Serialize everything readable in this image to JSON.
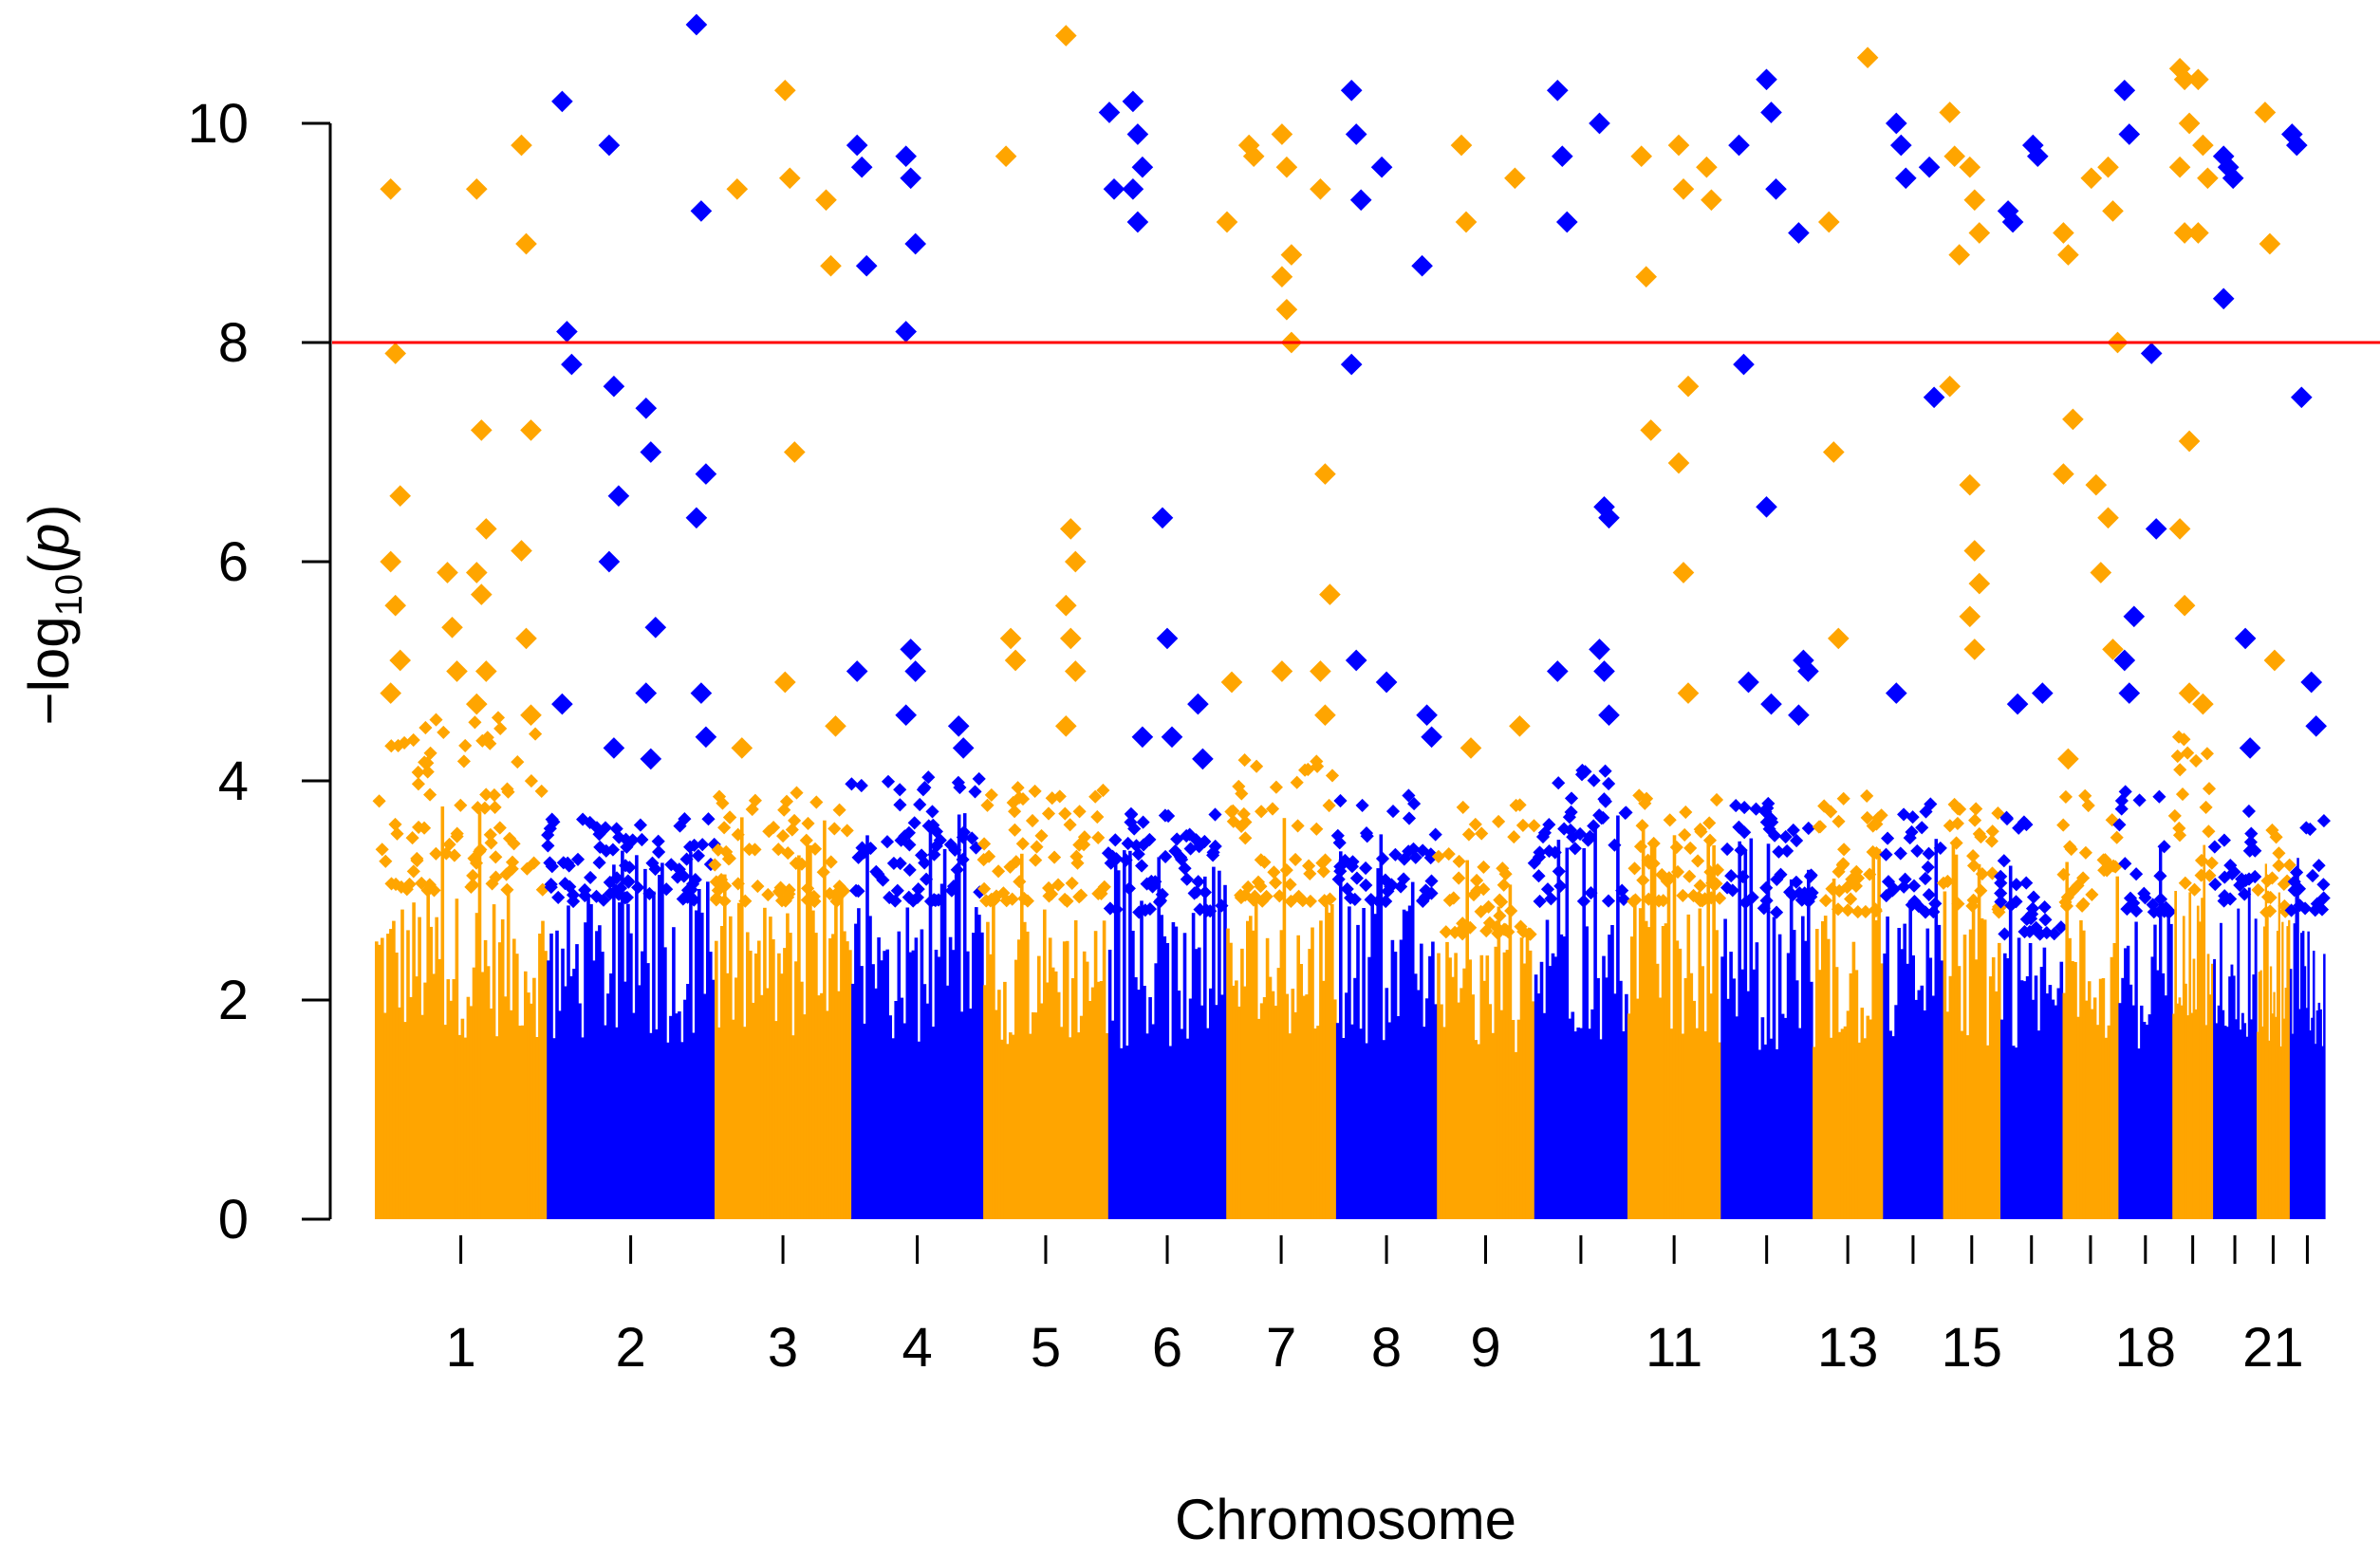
{
  "chart_data": {
    "type": "scatter",
    "subtype": "manhattan",
    "title": "",
    "xlabel": "Chromosome",
    "ylabel_prefix": "−log",
    "ylabel_subscript": "10",
    "ylabel_open": "(",
    "ylabel_var": "p",
    "ylabel_close": ")",
    "ylim": [
      0,
      11
    ],
    "yticks": [
      0,
      2,
      4,
      6,
      8,
      10
    ],
    "threshold": 8,
    "threshold_color": "#ff0000",
    "colors": [
      "#ffa500",
      "#0000ff"
    ],
    "grid": false,
    "legend": "none",
    "chromosomes": [
      {
        "chr": 1,
        "size": 249,
        "label": "1",
        "cap": 4.3,
        "ymax_bulk": 3.0
      },
      {
        "chr": 2,
        "size": 243,
        "label": "2",
        "cap": 3.4,
        "ymax_bulk": 2.9
      },
      {
        "chr": 3,
        "size": 198,
        "label": "3",
        "cap": 3.7,
        "ymax_bulk": 2.9
      },
      {
        "chr": 4,
        "size": 191,
        "label": "4",
        "cap": 3.8,
        "ymax_bulk": 2.9
      },
      {
        "chr": 5,
        "size": 181,
        "label": "5",
        "cap": 3.7,
        "ymax_bulk": 2.9
      },
      {
        "chr": 6,
        "size": 171,
        "label": "6",
        "cap": 3.4,
        "ymax_bulk": 2.8
      },
      {
        "chr": 7,
        "size": 159,
        "label": "7",
        "cap": 3.9,
        "ymax_bulk": 2.9
      },
      {
        "chr": 8,
        "size": 146,
        "label": "8",
        "cap": 3.6,
        "ymax_bulk": 2.9
      },
      {
        "chr": 9,
        "size": 141,
        "label": "9",
        "cap": 3.5,
        "ymax_bulk": 2.6
      },
      {
        "chr": 10,
        "size": 135,
        "label": "",
        "cap": 3.8,
        "ymax_bulk": 2.9
      },
      {
        "chr": 11,
        "size": 135,
        "label": "11",
        "cap": 3.6,
        "ymax_bulk": 2.9
      },
      {
        "chr": 12,
        "size": 133,
        "label": "",
        "cap": 3.5,
        "ymax_bulk": 2.8
      },
      {
        "chr": 13,
        "size": 102,
        "label": "13",
        "cap": 3.6,
        "ymax_bulk": 2.8
      },
      {
        "chr": 14,
        "size": 87,
        "label": "",
        "cap": 3.5,
        "ymax_bulk": 2.8
      },
      {
        "chr": 15,
        "size": 83,
        "label": "15",
        "cap": 3.5,
        "ymax_bulk": 2.8
      },
      {
        "chr": 16,
        "size": 90,
        "label": "",
        "cap": 3.4,
        "ymax_bulk": 2.6
      },
      {
        "chr": 17,
        "size": 81,
        "label": "",
        "cap": 3.6,
        "ymax_bulk": 2.8
      },
      {
        "chr": 18,
        "size": 78,
        "label": "18",
        "cap": 3.7,
        "ymax_bulk": 2.8
      },
      {
        "chr": 19,
        "size": 59,
        "label": "",
        "cap": 4.2,
        "ymax_bulk": 3.0
      },
      {
        "chr": 20,
        "size": 63,
        "label": "",
        "cap": 3.5,
        "ymax_bulk": 2.9
      },
      {
        "chr": 21,
        "size": 48,
        "label": "21",
        "cap": 3.3,
        "ymax_bulk": 2.8
      },
      {
        "chr": 22,
        "size": 51,
        "label": "",
        "cap": 3.4,
        "ymax_bulk": 2.8
      }
    ],
    "peaks": [
      {
        "chr": 1,
        "pos": 0.12,
        "y": [
          9.4,
          7.9,
          6.6,
          6.0,
          5.6,
          5.1,
          4.8
        ]
      },
      {
        "chr": 1,
        "pos": 0.62,
        "y": [
          9.4,
          7.2,
          6.3,
          5.9,
          5.7,
          5.0,
          4.7
        ]
      },
      {
        "chr": 1,
        "pos": 0.88,
        "y": [
          9.8,
          8.9,
          7.2,
          6.1,
          5.3,
          4.6
        ]
      },
      {
        "chr": 1,
        "pos": 0.45,
        "y": [
          5.9,
          5.4,
          5.0
        ]
      },
      {
        "chr": 2,
        "pos": 0.12,
        "y": [
          10.2,
          8.1,
          7.8,
          4.7
        ]
      },
      {
        "chr": 2,
        "pos": 0.4,
        "y": [
          9.8,
          7.6,
          6.6,
          6.0,
          4.3
        ]
      },
      {
        "chr": 2,
        "pos": 0.62,
        "y": [
          7.4,
          7.0,
          5.4,
          4.8,
          4.2
        ]
      },
      {
        "chr": 2,
        "pos": 0.92,
        "y": [
          10.9,
          9.2,
          6.8,
          6.4,
          4.8,
          4.4
        ]
      },
      {
        "chr": 3,
        "pos": 0.2,
        "y": [
          9.4,
          4.3
        ]
      },
      {
        "chr": 3,
        "pos": 0.55,
        "y": [
          10.3,
          9.5,
          7.0,
          4.9
        ]
      },
      {
        "chr": 3,
        "pos": 0.85,
        "y": [
          9.3,
          8.7,
          4.5
        ]
      },
      {
        "chr": 4,
        "pos": 0.08,
        "y": [
          9.8,
          9.6,
          8.7,
          5.0
        ]
      },
      {
        "chr": 4,
        "pos": 0.45,
        "y": [
          9.7,
          9.5,
          8.9,
          8.1,
          5.2,
          5.0,
          4.6
        ]
      },
      {
        "chr": 4,
        "pos": 0.85,
        "y": [
          4.5,
          4.3
        ]
      },
      {
        "chr": 5,
        "pos": 0.22,
        "y": [
          9.7,
          5.3,
          5.1
        ]
      },
      {
        "chr": 5,
        "pos": 0.7,
        "y": [
          10.8,
          6.3,
          6.0,
          5.6,
          5.3,
          5.0,
          4.5
        ]
      },
      {
        "chr": 6,
        "pos": 0.05,
        "y": [
          10.1,
          9.4
        ]
      },
      {
        "chr": 6,
        "pos": 0.25,
        "y": [
          10.2,
          9.9,
          9.6,
          9.4,
          9.1,
          4.4
        ]
      },
      {
        "chr": 6,
        "pos": 0.5,
        "y": [
          6.4,
          5.3,
          4.4
        ]
      },
      {
        "chr": 6,
        "pos": 0.8,
        "y": [
          4.7,
          4.2
        ]
      },
      {
        "chr": 7,
        "pos": 0.05,
        "y": [
          9.1,
          4.9
        ]
      },
      {
        "chr": 7,
        "pos": 0.25,
        "y": [
          9.8,
          9.7
        ]
      },
      {
        "chr": 7,
        "pos": 0.55,
        "y": [
          9.9,
          9.6,
          8.8,
          8.6,
          8.3,
          8.0,
          5.0
        ]
      },
      {
        "chr": 7,
        "pos": 0.9,
        "y": [
          9.4,
          6.8,
          5.7,
          5.0,
          4.6
        ]
      },
      {
        "chr": 8,
        "pos": 0.2,
        "y": [
          10.3,
          9.9,
          9.3,
          7.8,
          5.1
        ]
      },
      {
        "chr": 8,
        "pos": 0.5,
        "y": [
          9.6,
          4.9
        ]
      },
      {
        "chr": 8,
        "pos": 0.9,
        "y": [
          8.7,
          4.6,
          4.4
        ]
      },
      {
        "chr": 9,
        "pos": 0.3,
        "y": [
          9.8,
          9.1,
          4.3
        ]
      },
      {
        "chr": 9,
        "pos": 0.85,
        "y": [
          9.5,
          4.5
        ]
      },
      {
        "chr": 10,
        "pos": 0.3,
        "y": [
          10.3,
          9.7,
          9.1,
          5.0
        ]
      },
      {
        "chr": 10,
        "pos": 0.75,
        "y": [
          10.0,
          6.5,
          6.4,
          5.2,
          5.0,
          4.6
        ]
      },
      {
        "chr": 11,
        "pos": 0.2,
        "y": [
          9.7,
          8.6,
          7.2
        ]
      },
      {
        "chr": 11,
        "pos": 0.6,
        "y": [
          9.8,
          9.4,
          7.6,
          6.9,
          5.9,
          4.8
        ]
      },
      {
        "chr": 11,
        "pos": 0.9,
        "y": [
          9.6,
          9.3
        ]
      },
      {
        "chr": 12,
        "pos": 0.25,
        "y": [
          9.8,
          7.8,
          4.9
        ]
      },
      {
        "chr": 12,
        "pos": 0.55,
        "y": [
          10.4,
          10.1,
          9.4,
          6.5,
          4.7
        ]
      },
      {
        "chr": 12,
        "pos": 0.9,
        "y": [
          9.0,
          5.1,
          5.0,
          4.6
        ]
      },
      {
        "chr": 13,
        "pos": 0.3,
        "y": [
          9.1,
          7.0,
          5.3
        ]
      },
      {
        "chr": 13,
        "pos": 0.85,
        "y": [
          10.6
        ]
      },
      {
        "chr": 14,
        "pos": 0.3,
        "y": [
          10.0,
          9.8,
          9.5,
          4.8
        ]
      },
      {
        "chr": 14,
        "pos": 0.85,
        "y": [
          9.6,
          7.5
        ]
      },
      {
        "chr": 15,
        "pos": 0.2,
        "y": [
          10.1,
          9.7,
          8.8,
          7.6
        ]
      },
      {
        "chr": 15,
        "pos": 0.55,
        "y": [
          9.6,
          9.3,
          9.0,
          6.7,
          6.1,
          5.8,
          5.5,
          5.2
        ]
      },
      {
        "chr": 16,
        "pos": 0.2,
        "y": [
          9.2,
          9.1,
          4.7
        ]
      },
      {
        "chr": 16,
        "pos": 0.6,
        "y": [
          9.8,
          9.7,
          4.8
        ]
      },
      {
        "chr": 17,
        "pos": 0.1,
        "y": [
          9.0,
          8.8,
          7.3,
          6.8,
          4.2
        ]
      },
      {
        "chr": 17,
        "pos": 0.6,
        "y": [
          9.5,
          6.7,
          5.9
        ]
      },
      {
        "chr": 17,
        "pos": 0.9,
        "y": [
          9.6,
          9.2,
          8.0,
          6.4,
          5.2
        ]
      },
      {
        "chr": 18,
        "pos": 0.2,
        "y": [
          10.3,
          9.9,
          5.5,
          5.1,
          4.8
        ]
      },
      {
        "chr": 18,
        "pos": 0.7,
        "y": [
          7.9,
          6.3
        ]
      },
      {
        "chr": 19,
        "pos": 0.3,
        "y": [
          10.5,
          10.4,
          10.0,
          9.6,
          9.0,
          7.1,
          6.3,
          5.6,
          4.8
        ]
      },
      {
        "chr": 19,
        "pos": 0.75,
        "y": [
          10.4,
          9.8,
          9.5,
          9.0,
          4.7
        ]
      },
      {
        "chr": 20,
        "pos": 0.35,
        "y": [
          9.7,
          9.6,
          9.5,
          8.4
        ]
      },
      {
        "chr": 20,
        "pos": 0.85,
        "y": [
          5.3,
          4.3
        ]
      },
      {
        "chr": 21,
        "pos": 0.4,
        "y": [
          10.1,
          8.9,
          5.1
        ]
      },
      {
        "chr": 22,
        "pos": 0.2,
        "y": [
          9.9,
          9.8,
          7.5
        ]
      },
      {
        "chr": 22,
        "pos": 0.75,
        "y": [
          4.9,
          4.5
        ]
      }
    ]
  }
}
